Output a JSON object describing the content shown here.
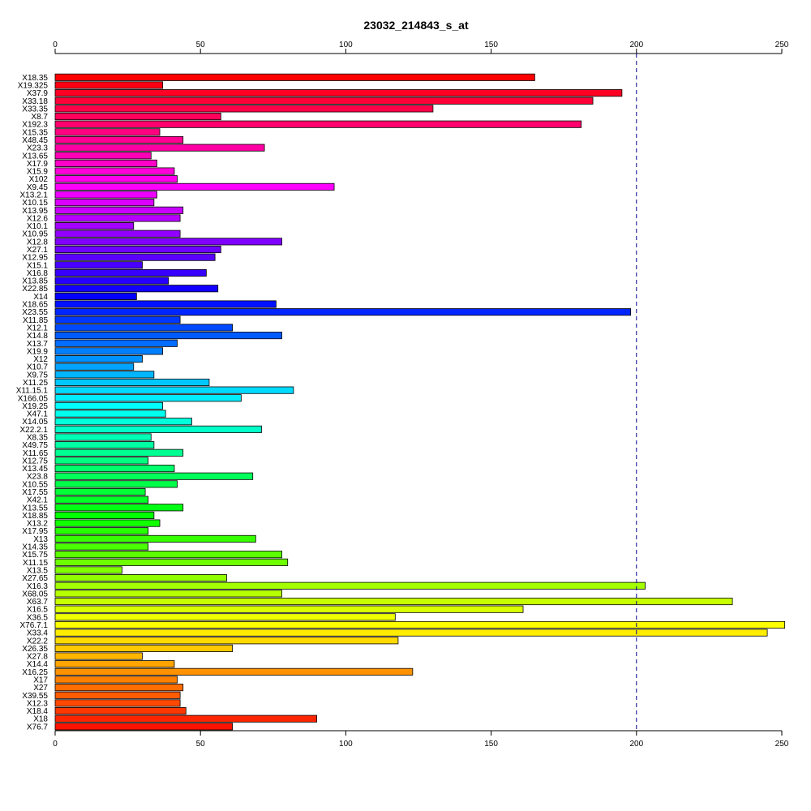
{
  "chart_data": {
    "type": "bar",
    "orientation": "horizontal",
    "title": "23032_214843_s_at",
    "xlabel": "",
    "ylabel": "",
    "xlim": [
      0,
      250
    ],
    "x_ticks": [
      0,
      50,
      100,
      150,
      200,
      250
    ],
    "axes": "top-and-bottom",
    "grid": false,
    "reference_line": {
      "value": 200,
      "style": "dashed"
    },
    "color_scheme": "rainbow",
    "categories": [
      "X18.35",
      "X19.325",
      "X37.9",
      "X33.18",
      "X33.35",
      "X8.7",
      "X192.3",
      "X15.35",
      "X48.45",
      "X23.3",
      "X13.65",
      "X17.9",
      "X15.9",
      "X102",
      "X9.45",
      "X13.2.1",
      "X10.15",
      "X13.95",
      "X12.6",
      "X10.1",
      "X10.95",
      "X12.8",
      "X27.1",
      "X12.95",
      "X15.1",
      "X16.8",
      "X13.85",
      "X22.85",
      "X14",
      "X18.65",
      "X23.55",
      "X11.85",
      "X12.1",
      "X14.8",
      "X13.7",
      "X19.9",
      "X12",
      "X10.7",
      "X9.75",
      "X11.25",
      "X11.15.1",
      "X166.05",
      "X19.25",
      "X47.1",
      "X14.05",
      "X22.2.1",
      "X8.35",
      "X49.75",
      "X11.65",
      "X12.75",
      "X13.45",
      "X23.8",
      "X10.55",
      "X17.55",
      "X42.1",
      "X13.55",
      "X18.85",
      "X13.2",
      "X17.95",
      "X13",
      "X14.35",
      "X15.75",
      "X11.15",
      "X13.5",
      "X27.65",
      "X16.3",
      "X68.05",
      "X63.7",
      "X16.5",
      "X36.5",
      "X76.7.1",
      "X33.4",
      "X22.2",
      "X26.35",
      "X27.8",
      "X14.4",
      "X16.25",
      "X17",
      "X27",
      "X39.55",
      "X12.3",
      "X18.4",
      "X18",
      "X76.7"
    ],
    "values": [
      165,
      37,
      195,
      185,
      130,
      57,
      181,
      36,
      44,
      72,
      33,
      35,
      41,
      42,
      96,
      35,
      34,
      44,
      43,
      27,
      43,
      78,
      57,
      55,
      30,
      52,
      39,
      56,
      28,
      76,
      198,
      43,
      61,
      78,
      42,
      37,
      30,
      27,
      34,
      53,
      82,
      64,
      37,
      38,
      47,
      71,
      33,
      34,
      44,
      32,
      41,
      68,
      42,
      31,
      32,
      44,
      34,
      36,
      32,
      69,
      32,
      78,
      80,
      23,
      59,
      203,
      78,
      233,
      161,
      117,
      251,
      245,
      118,
      61,
      30,
      41,
      123,
      42,
      44,
      43,
      43,
      45,
      90,
      61
    ]
  }
}
